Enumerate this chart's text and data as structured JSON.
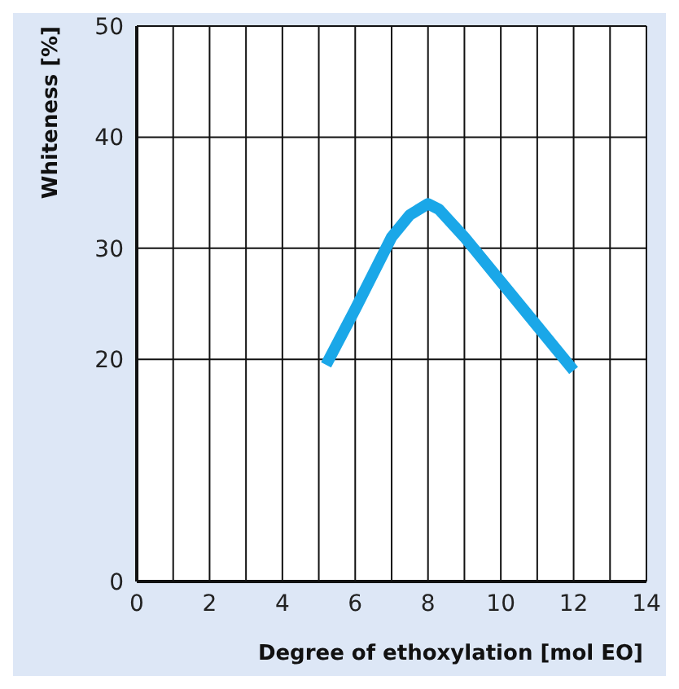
{
  "chart_data": {
    "type": "line",
    "xlabel": "Degree of ethoxylation [mol EO]",
    "ylabel": "Whiteness [%]",
    "x": [
      5.2,
      6,
      7,
      7.5,
      8,
      8.3,
      9,
      10,
      11,
      12
    ],
    "series": [
      {
        "color": "#1aa7e8",
        "values": [
          19.5,
          24.5,
          31,
          33,
          34,
          33.5,
          31,
          27,
          23,
          19
        ]
      }
    ],
    "xlim": [
      0,
      14
    ],
    "xticks": [
      0,
      {
        "value": 1,
        "label": null
      },
      2,
      {
        "value": 3,
        "label": null
      },
      4,
      {
        "value": 5,
        "label": null
      },
      6,
      {
        "value": 7,
        "label": null
      },
      8,
      {
        "value": 9,
        "label": null
      },
      10,
      {
        "value": 11,
        "label": null
      },
      12,
      {
        "value": 13,
        "label": null
      },
      14
    ],
    "ylim": [
      0,
      50
    ],
    "yticks": [
      0,
      20,
      30,
      40,
      50
    ],
    "grid": true,
    "marker": "none",
    "line_style": "solid"
  }
}
